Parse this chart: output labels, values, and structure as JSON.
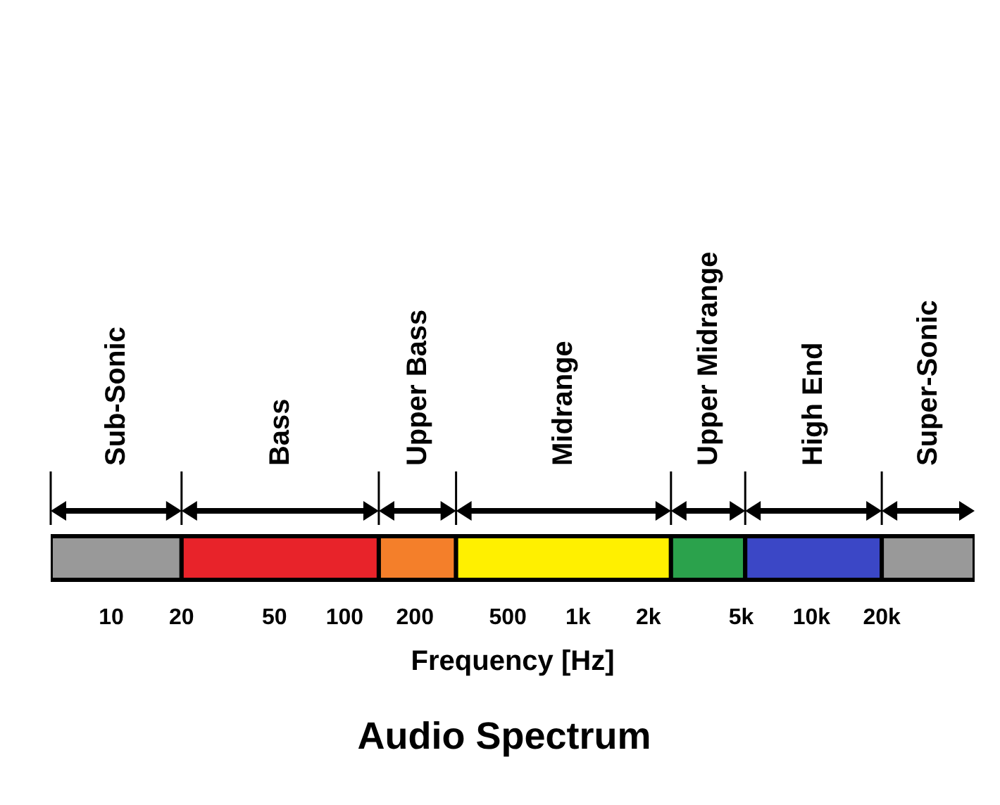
{
  "chart_data": {
    "type": "bar",
    "orientation": "horizontal",
    "title": "Audio Spectrum",
    "xlabel": "Frequency [Hz]",
    "log": "x",
    "xlim": [
      5.5,
      50000
    ],
    "tick_labels": "x",
    "categories": [
      null
    ],
    "xticks": [
      10,
      20,
      50,
      100,
      200,
      500,
      {
        "value": 1000,
        "label": "1k"
      },
      {
        "value": 2000,
        "label": "2k"
      },
      {
        "value": 5000,
        "label": "5k"
      },
      {
        "value": 10000,
        "label": "10k"
      },
      {
        "value": 20000,
        "label": "20k"
      }
    ],
    "series": [
      {
        "name": "Sub-Sonic",
        "color": "#999999",
        "base": [
          5.5
        ],
        "values": [
          14.5
        ]
      },
      {
        "name": "Bass",
        "color": "#e8232a",
        "base": [
          20
        ],
        "values": [
          120
        ]
      },
      {
        "name": "Upper Bass",
        "color": "#f47f2a",
        "base": [
          140
        ],
        "values": [
          160
        ]
      },
      {
        "name": "Midrange",
        "color": "#fff000",
        "base": [
          300
        ],
        "values": [
          2200
        ]
      },
      {
        "name": "Upper Midrange",
        "color": "#2ba24c",
        "base": [
          2500
        ],
        "values": [
          2700
        ]
      },
      {
        "name": "High End",
        "color": "#3b47c6",
        "base": [
          5200
        ],
        "values": [
          14800
        ]
      },
      {
        "name": "Super-Sonic",
        "color": "#999999",
        "base": [
          20000
        ],
        "values": [
          30000
        ]
      }
    ]
  }
}
